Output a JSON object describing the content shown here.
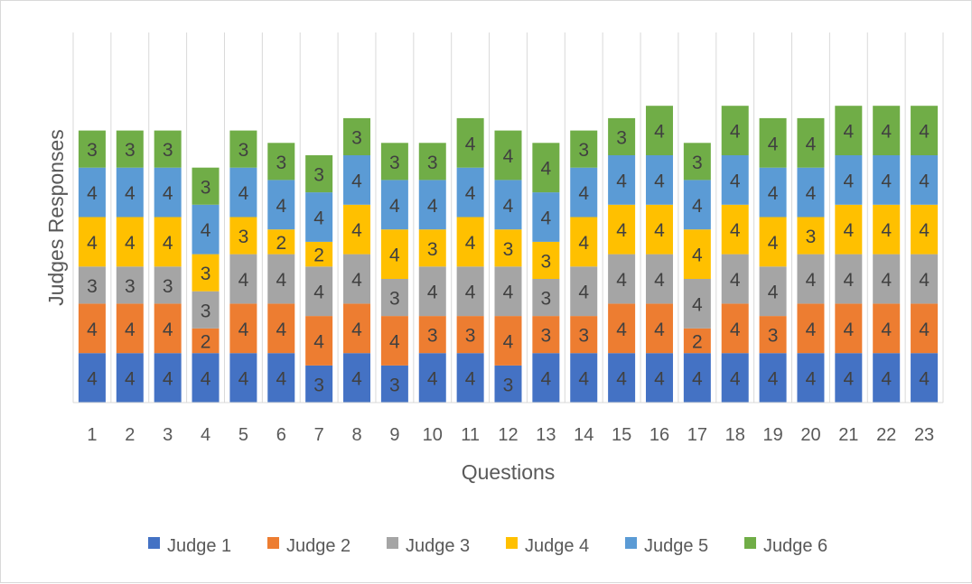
{
  "chart_data": {
    "type": "bar",
    "stacked": true,
    "title": "",
    "xlabel": "Questions",
    "ylabel": "Judges Responses",
    "ylim": [
      0,
      24
    ],
    "grid": "vertical",
    "legend_position": "bottom",
    "categories": [
      "1",
      "2",
      "3",
      "4",
      "5",
      "6",
      "7",
      "8",
      "9",
      "10",
      "11",
      "12",
      "13",
      "14",
      "15",
      "16",
      "17",
      "18",
      "19",
      "20",
      "21",
      "22",
      "23"
    ],
    "series": [
      {
        "name": "Judge 1",
        "color": "#4472C4",
        "values": [
          4,
          4,
          4,
          4,
          4,
          4,
          3,
          4,
          3,
          4,
          4,
          3,
          4,
          4,
          4,
          4,
          4,
          4,
          4,
          4,
          4,
          4,
          4
        ]
      },
      {
        "name": "Judge 2",
        "color": "#ED7D31",
        "values": [
          4,
          4,
          4,
          2,
          4,
          4,
          4,
          4,
          4,
          3,
          3,
          4,
          3,
          3,
          4,
          4,
          2,
          4,
          3,
          4,
          4,
          4,
          4
        ]
      },
      {
        "name": "Judge 3",
        "color": "#A5A5A5",
        "values": [
          3,
          3,
          3,
          3,
          4,
          4,
          4,
          4,
          3,
          4,
          4,
          4,
          3,
          4,
          4,
          4,
          4,
          4,
          4,
          4,
          4,
          4,
          4
        ]
      },
      {
        "name": "Judge 4",
        "color": "#FFC000",
        "values": [
          4,
          4,
          4,
          3,
          3,
          2,
          2,
          4,
          4,
          3,
          4,
          3,
          3,
          4,
          4,
          4,
          4,
          4,
          4,
          3,
          4,
          4,
          4
        ]
      },
      {
        "name": "Judge 5",
        "color": "#5B9BD5",
        "values": [
          4,
          4,
          4,
          4,
          4,
          4,
          4,
          4,
          4,
          4,
          4,
          4,
          4,
          4,
          4,
          4,
          4,
          4,
          4,
          4,
          4,
          4,
          4
        ]
      },
      {
        "name": "Judge 6",
        "color": "#70AD47",
        "values": [
          3,
          3,
          3,
          3,
          3,
          3,
          3,
          3,
          3,
          3,
          4,
          4,
          4,
          3,
          3,
          4,
          3,
          4,
          4,
          4,
          4,
          4,
          4
        ]
      }
    ]
  }
}
